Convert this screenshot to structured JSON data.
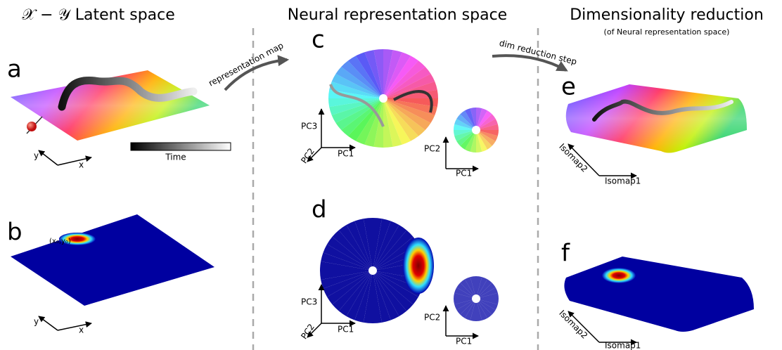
{
  "columns": [
    {
      "title": "𝒳 − 𝒴 Latent space"
    },
    {
      "title": "Neural representation space"
    },
    {
      "title": "Dimensionality reduction",
      "subtitle": "(of Neural representation space)"
    }
  ],
  "arrows": [
    "representation map",
    "dim reduction step"
  ],
  "panels": [
    {
      "label": "a",
      "axes": [
        "x",
        "y"
      ],
      "colorbar_label": "Time"
    },
    {
      "label": "b",
      "axes": [
        "x",
        "y"
      ],
      "annotation": "(x₀,y₀)"
    },
    {
      "label": "c",
      "axes": [
        "PC1",
        "PC2",
        "PC3"
      ],
      "inset_axes": [
        "PC1",
        "PC2"
      ]
    },
    {
      "label": "d",
      "axes": [
        "PC1",
        "PC2",
        "PC3"
      ],
      "inset_axes": [
        "PC1",
        "PC2"
      ]
    },
    {
      "label": "e",
      "axes": [
        "Isomap1",
        "Isomap2"
      ]
    },
    {
      "label": "f",
      "axes": [
        "Isomap1",
        "Isomap2"
      ]
    }
  ]
}
